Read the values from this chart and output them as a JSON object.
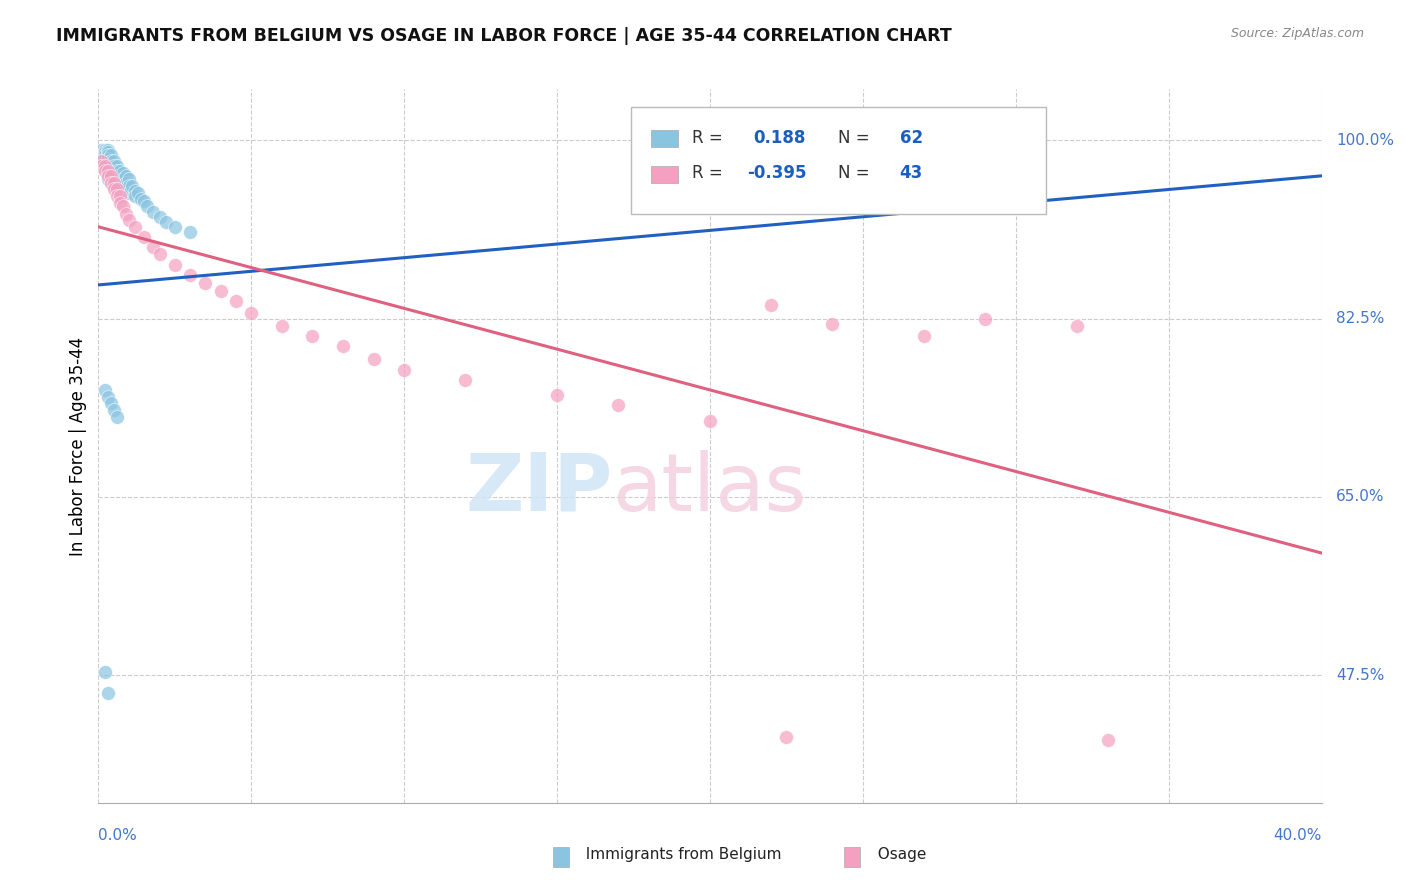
{
  "title": "IMMIGRANTS FROM BELGIUM VS OSAGE IN LABOR FORCE | AGE 35-44 CORRELATION CHART",
  "source": "Source: ZipAtlas.com",
  "ylabel": "In Labor Force | Age 35-44",
  "xlim": [
    0.0,
    0.4
  ],
  "ylim": [
    0.35,
    1.05
  ],
  "right_yticks": [
    1.0,
    0.825,
    0.65,
    0.475
  ],
  "right_ytick_labels": [
    "100.0%",
    "82.5%",
    "65.0%",
    "47.5%"
  ],
  "belgium_color": "#89c4e1",
  "osage_color": "#f4a0c0",
  "belgium_line_color": "#2060c0",
  "osage_line_color": "#e06080",
  "belgium_trend_x": [
    0.0,
    0.4
  ],
  "belgium_trend_y": [
    0.858,
    0.965
  ],
  "osage_trend_x": [
    0.0,
    0.4
  ],
  "osage_trend_y": [
    0.915,
    0.595
  ],
  "belgium_scatter_x": [
    0.001,
    0.001,
    0.001,
    0.002,
    0.002,
    0.002,
    0.002,
    0.002,
    0.002,
    0.003,
    0.003,
    0.003,
    0.003,
    0.003,
    0.003,
    0.003,
    0.003,
    0.003,
    0.004,
    0.004,
    0.004,
    0.004,
    0.004,
    0.005,
    0.005,
    0.005,
    0.005,
    0.005,
    0.005,
    0.006,
    0.006,
    0.006,
    0.006,
    0.007,
    0.007,
    0.008,
    0.008,
    0.008,
    0.009,
    0.009,
    0.01,
    0.01,
    0.01,
    0.011,
    0.012,
    0.012,
    0.013,
    0.014,
    0.015,
    0.016,
    0.018,
    0.02,
    0.022,
    0.025,
    0.03,
    0.002,
    0.003,
    0.004,
    0.005,
    0.006,
    0.002,
    0.003
  ],
  "belgium_scatter_y": [
    0.99,
    0.985,
    0.98,
    0.99,
    0.988,
    0.985,
    0.982,
    0.978,
    0.972,
    0.99,
    0.988,
    0.985,
    0.982,
    0.978,
    0.975,
    0.972,
    0.968,
    0.962,
    0.985,
    0.98,
    0.975,
    0.97,
    0.965,
    0.98,
    0.975,
    0.97,
    0.965,
    0.96,
    0.955,
    0.975,
    0.97,
    0.965,
    0.958,
    0.97,
    0.962,
    0.968,
    0.962,
    0.955,
    0.965,
    0.958,
    0.962,
    0.955,
    0.948,
    0.955,
    0.95,
    0.945,
    0.948,
    0.942,
    0.94,
    0.935,
    0.93,
    0.925,
    0.92,
    0.915,
    0.91,
    0.755,
    0.748,
    0.742,
    0.735,
    0.728,
    0.478,
    0.458
  ],
  "osage_scatter_x": [
    0.001,
    0.001,
    0.002,
    0.002,
    0.003,
    0.003,
    0.004,
    0.004,
    0.005,
    0.005,
    0.006,
    0.006,
    0.007,
    0.007,
    0.008,
    0.009,
    0.01,
    0.012,
    0.015,
    0.018,
    0.02,
    0.025,
    0.03,
    0.035,
    0.04,
    0.045,
    0.05,
    0.06,
    0.07,
    0.08,
    0.09,
    0.1,
    0.12,
    0.15,
    0.17,
    0.2,
    0.22,
    0.24,
    0.27,
    0.29,
    0.32,
    0.225,
    0.33
  ],
  "osage_scatter_y": [
    0.98,
    0.975,
    0.975,
    0.97,
    0.97,
    0.965,
    0.965,
    0.958,
    0.958,
    0.952,
    0.952,
    0.945,
    0.945,
    0.938,
    0.935,
    0.928,
    0.922,
    0.915,
    0.905,
    0.895,
    0.888,
    0.878,
    0.868,
    0.86,
    0.852,
    0.842,
    0.83,
    0.818,
    0.808,
    0.798,
    0.785,
    0.775,
    0.765,
    0.75,
    0.74,
    0.725,
    0.838,
    0.82,
    0.808,
    0.825,
    0.818,
    0.415,
    0.412
  ]
}
